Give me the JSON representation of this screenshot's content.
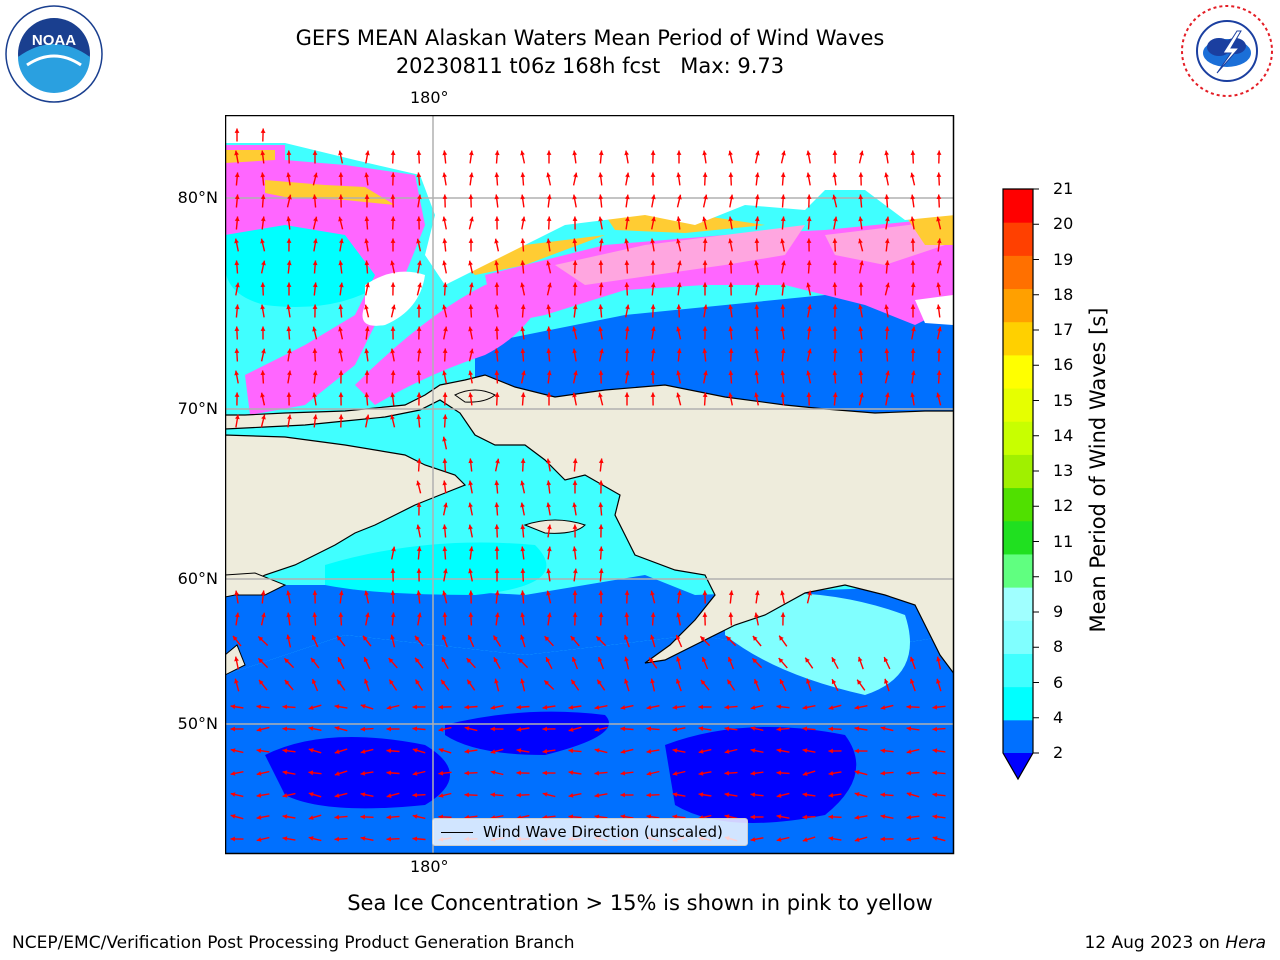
{
  "title": {
    "line1": "GEFS MEAN Alaskan Waters Mean Period of Wind Waves",
    "line2": "20230811 t06z 168h fcst   Max: 9.73"
  },
  "map": {
    "longitude_labels": [
      "180°",
      "180°"
    ],
    "latitude_labels": [
      "80°N",
      "70°N",
      "60°N",
      "50°N"
    ],
    "legend": "Wind Wave Direction (unscaled)",
    "land_color": "#eeecdc",
    "arrow_color": "#ff0000",
    "ice_colors": [
      "#ff66ff",
      "#ffa6e0",
      "#ffcc33",
      "#ffff66"
    ]
  },
  "colorbar": {
    "label": "Mean Period of Wind Waves [s]",
    "ticks": [
      "2",
      "4",
      "6",
      "8",
      "9",
      "10",
      "11",
      "12",
      "13",
      "14",
      "15",
      "16",
      "17",
      "18",
      "19",
      "20",
      "21"
    ],
    "colors": [
      "#0070ff",
      "#00ffff",
      "#40ffff",
      "#80ffff",
      "#a0ffff",
      "#60ff80",
      "#20e020",
      "#50e000",
      "#a0f000",
      "#c8ff00",
      "#e6ff00",
      "#ffff00",
      "#ffd000",
      "#ffa000",
      "#ff7000",
      "#ff4000",
      "#ff0000"
    ],
    "under_color": "#0000ff"
  },
  "caption": "Sea Ice Concentration > 15% is shown in pink to yellow",
  "footer": {
    "left": "NCEP/EMC/Verification Post Processing Product Generation Branch",
    "right_date": "12 Aug 2023 on",
    "right_machine": "Hera"
  },
  "logos": {
    "noaa": "NOAA",
    "noaa_ring": "NATIONAL OCEANIC AND ATMOSPHERIC ADMINISTRATION · U.S. DEPARTMENT OF COMMERCE",
    "nws_ring": "NATIONAL WEATHER SERVICE"
  }
}
